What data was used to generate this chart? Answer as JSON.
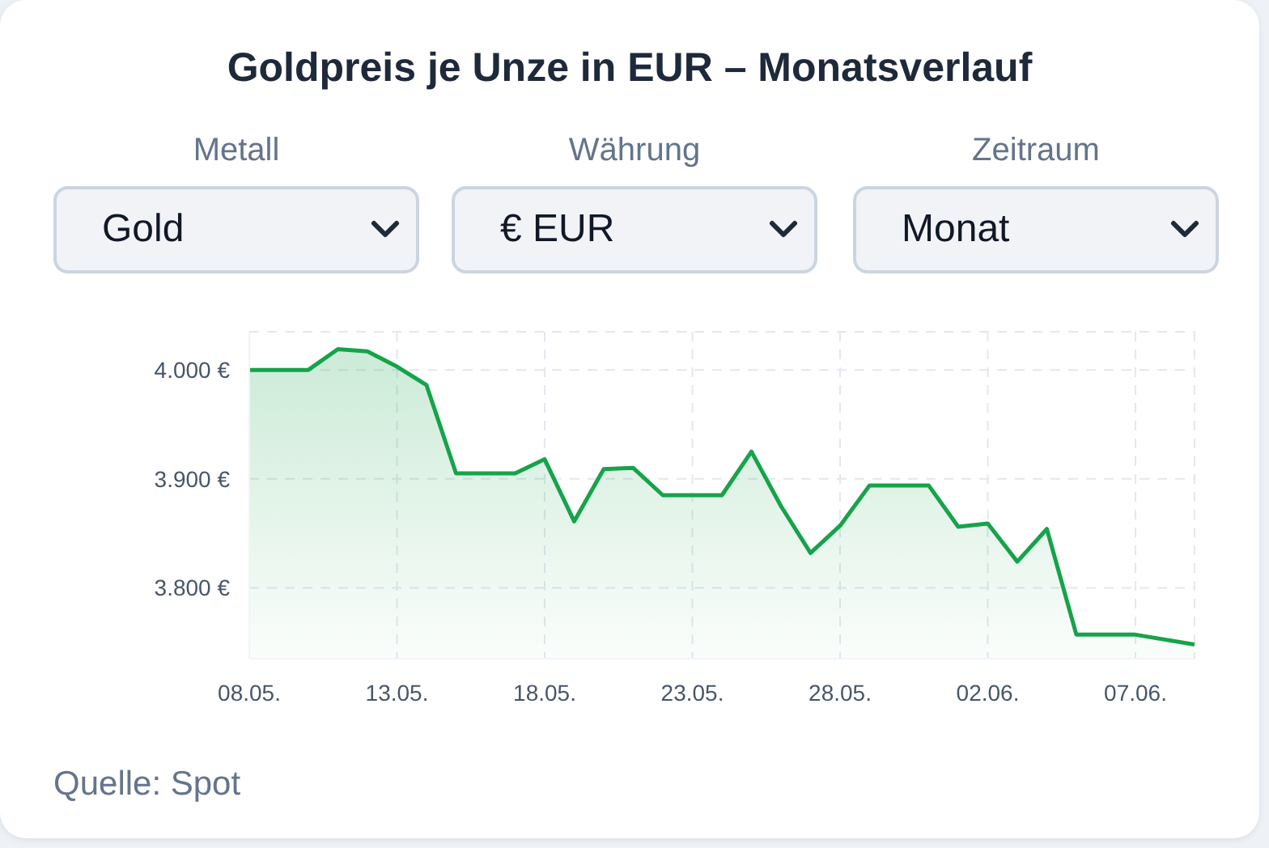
{
  "chart_data": {
    "type": "area",
    "title": "Goldpreis je Unze in EUR – Monatsverlauf",
    "annotations": [
      "Metall",
      "Gold",
      "Währung",
      "€ EUR",
      "Zeitraum",
      "Monat",
      "Quelle: Spot"
    ],
    "x": [
      "--05-08",
      "--05-10",
      "--05-11",
      "--05-12",
      "--05-13",
      "--05-14",
      "--05-15",
      "--05-17",
      "--05-18",
      "--05-19",
      "--05-20",
      "--05-21",
      "--05-22",
      "--05-24",
      "--05-25",
      "--05-26",
      "--05-27",
      "--05-28",
      "--05-29",
      "--05-31",
      "--06-01",
      "--06-02",
      "--06-03",
      "--06-04",
      "--06-05",
      "--06-07",
      "--06-09"
    ],
    "series": [
      {
        "color": "#16a34a",
        "values": [
          4000,
          4000,
          4019,
          4017,
          4003,
          3986,
          3905,
          3905,
          3918,
          3861,
          3909,
          3910,
          3885,
          3885,
          3925,
          3875,
          3832,
          3857,
          3894,
          3894,
          3856,
          3859,
          3824,
          3854,
          3757,
          3757,
          3748
        ]
      }
    ],
    "xlim": [
      "--05-08",
      "--06-09"
    ],
    "xticks": [
      {
        "value": "--05-08",
        "label": "08.05."
      },
      {
        "value": "--05-13",
        "label": "13.05."
      },
      {
        "value": "--05-18",
        "label": "18.05."
      },
      {
        "value": "--05-23",
        "label": "23.05."
      },
      {
        "value": "--05-28",
        "label": "28.05."
      },
      {
        "value": "--06-02",
        "label": "02.06."
      },
      {
        "value": "--06-07",
        "label": "07.06."
      }
    ],
    "ylim": [
      3735,
      4035
    ],
    "yticks": [
      {
        "value": 3800,
        "label": "3.800 €"
      },
      {
        "value": 3900,
        "label": "3.900 €"
      },
      {
        "value": 4000,
        "label": "4.000 €"
      }
    ],
    "grid": true,
    "legend": false,
    "marker": "none",
    "line_style": "solid"
  }
}
